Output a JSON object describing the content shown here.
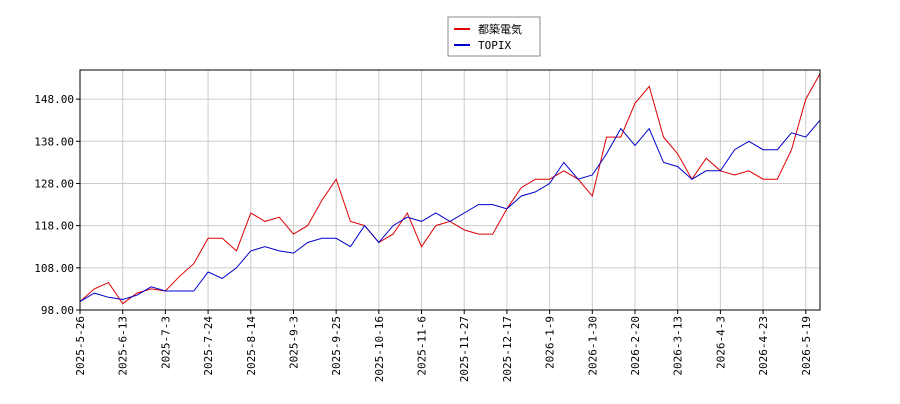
{
  "chart_data": {
    "type": "line",
    "categories": [
      "2025-5-26",
      null,
      null,
      "2025-6-13",
      null,
      null,
      "2025-7-3",
      null,
      null,
      "2025-7-24",
      null,
      null,
      "2025-8-14",
      null,
      null,
      "2025-9-3",
      null,
      null,
      "2025-9-25",
      null,
      null,
      "2025-10-16",
      null,
      null,
      "2025-11-6",
      null,
      null,
      "2025-11-27",
      null,
      null,
      "2025-12-17",
      null,
      null,
      "2026-1-9",
      null,
      null,
      "2026-1-30",
      null,
      null,
      "2026-2-20",
      null,
      null,
      "2026-3-13",
      null,
      null,
      "2026-4-3",
      null,
      null,
      "2026-4-23",
      null,
      null,
      "2026-5-19",
      null
    ],
    "series": [
      {
        "name": "都築電気",
        "color": "#dd0000",
        "values": [
          100,
          103,
          104.5,
          99.5,
          102,
          103,
          102.5,
          106,
          109,
          115,
          115,
          112,
          121,
          119,
          120,
          116,
          118,
          124,
          129,
          119,
          118,
          114,
          116,
          121,
          113,
          118,
          119,
          117,
          116,
          116,
          122,
          127,
          129,
          129,
          131,
          129,
          125,
          139,
          139,
          147,
          151,
          139,
          135,
          129,
          134,
          131,
          130,
          131,
          129,
          129,
          136,
          148,
          154
        ]
      },
      {
        "name": "TOPIX",
        "color": "#0000cc",
        "values": [
          100,
          102,
          101,
          100.5,
          101.5,
          103.5,
          102.5,
          102.5,
          102.5,
          107,
          105.5,
          108,
          112,
          113,
          112,
          111.5,
          114,
          115,
          115,
          113,
          118,
          114,
          118,
          120,
          119,
          121,
          119,
          121,
          123,
          123,
          122,
          125,
          126,
          128,
          133,
          129,
          130,
          135,
          141,
          137,
          141,
          133,
          132,
          129,
          131,
          131,
          136,
          138,
          136,
          136,
          140,
          139,
          143
        ]
      }
    ],
    "ylim": [
      98,
      154.9
    ],
    "yticks": [
      {
        "value": 98,
        "label": "98.00"
      },
      {
        "value": 108,
        "label": "108.00"
      },
      {
        "value": 118,
        "label": "118.00"
      },
      {
        "value": 128,
        "label": "128.00"
      },
      {
        "value": 138,
        "label": "138.00"
      },
      {
        "value": 148,
        "label": "148.00"
      }
    ],
    "grid": true,
    "legend": "top"
  }
}
